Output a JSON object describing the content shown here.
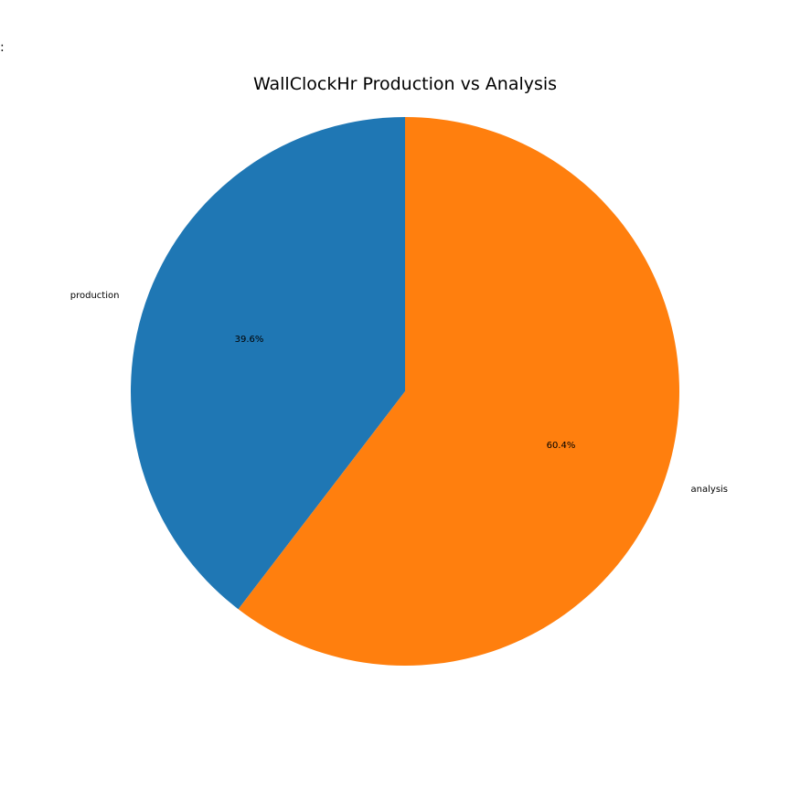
{
  "corner_text": ":",
  "chart_data": {
    "type": "pie",
    "title": "WallClockHr Production vs Analysis",
    "categories": [
      "production",
      "analysis"
    ],
    "values": [
      39.6,
      60.4
    ],
    "value_labels": [
      "39.6%",
      "60.4%"
    ],
    "colors": [
      "#1f77b4",
      "#ff7f0e"
    ],
    "start_angle_deg": 90,
    "direction": "counterclockwise",
    "legend": "none"
  }
}
